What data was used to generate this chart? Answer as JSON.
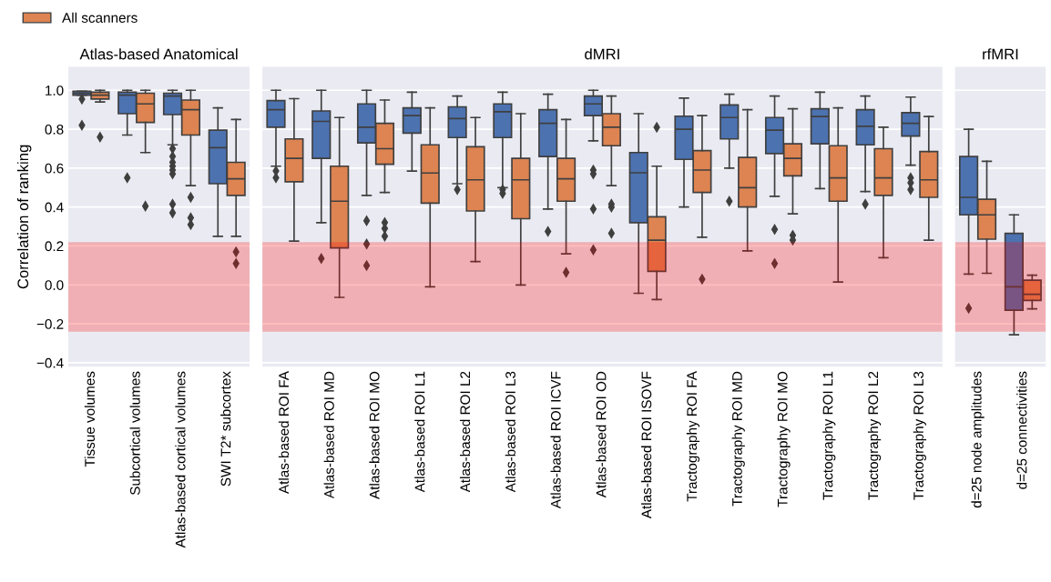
{
  "chart_data": [
    {
      "type": "box",
      "title": "Atlas-based Anatomical",
      "ylabel": "Correlation of ranking",
      "categories": [
        "Tissue volumes",
        "Subcortical volumes",
        "Atlas-based cortical volumes",
        "SWI T2* subcortex"
      ],
      "ylim": [
        -0.42,
        1.12
      ],
      "yticks": [
        {
          "value": -0.4,
          "label": "−0.4"
        },
        {
          "value": -0.2,
          "label": "−0.2"
        },
        {
          "value": 0.0,
          "label": "0.0"
        },
        {
          "value": 0.2,
          "label": "0.2"
        },
        {
          "value": 0.4,
          "label": "0.4"
        },
        {
          "value": 0.6,
          "label": "0.6"
        },
        {
          "value": 0.8,
          "label": "0.8"
        },
        {
          "value": 1.0,
          "label": "1.0"
        }
      ],
      "grid": "y",
      "legend": "top left",
      "bands": [
        {
          "axis": "y",
          "from": -0.24,
          "to": 0.22,
          "color": "#ff0000"
        }
      ],
      "series": [
        {
          "color": "#4c72b0",
          "boxes": [
            {
              "low": 0.975,
              "q1": 0.975,
              "median": 0.985,
              "q3": 0.995,
              "high": 0.995,
              "outliers": [
                0.955,
                0.82
              ]
            },
            {
              "low": 0.77,
              "q1": 0.88,
              "median": 0.975,
              "q3": 0.99,
              "high": 1.0,
              "outliers": [
                0.55
              ]
            },
            {
              "low": 0.72,
              "q1": 0.875,
              "median": 0.97,
              "q3": 0.985,
              "high": 1.0,
              "outliers": [
                0.7,
                0.66,
                0.63,
                0.61,
                0.59,
                0.57,
                0.415,
                0.37
              ]
            },
            {
              "low": 0.25,
              "q1": 0.52,
              "median": 0.705,
              "q3": 0.795,
              "high": 0.91
            }
          ]
        },
        {
          "name": "All scanners",
          "color": "#dd8452",
          "boxes": [
            {
              "low": 0.94,
              "q1": 0.955,
              "median": 0.975,
              "q3": 0.99,
              "high": 1.0,
              "outliers": [
                0.76
              ]
            },
            {
              "low": 0.68,
              "q1": 0.835,
              "median": 0.93,
              "q3": 0.985,
              "high": 1.0,
              "outliers": [
                0.405
              ]
            },
            {
              "low": 0.51,
              "q1": 0.77,
              "median": 0.9,
              "q3": 0.95,
              "high": 1.0,
              "outliers": [
                0.45,
                0.345,
                0.31
              ]
            },
            {
              "low": 0.25,
              "q1": 0.46,
              "median": 0.545,
              "q3": 0.63,
              "high": 0.85,
              "outliers": [
                0.17,
                0.11
              ]
            }
          ]
        }
      ]
    },
    {
      "type": "box",
      "title": "dMRI",
      "categories": [
        "Atlas-based ROI FA",
        "Atlas-based ROI MD",
        "Atlas-based ROI MO",
        "Atlas-based ROI L1",
        "Atlas-based ROI L2",
        "Atlas-based ROI L3",
        "Atlas-based ROI ICVF",
        "Atlas-based ROI OD",
        "Atlas-based ROI ISOVF",
        "Tractography ROI FA",
        "Tractography ROI MD",
        "Tractography ROI MO",
        "Tractography ROI L1",
        "Tractography ROI L2",
        "Tractography ROI L3"
      ],
      "ylim": [
        -0.42,
        1.12
      ],
      "grid": "y",
      "tick_labels": "x",
      "bands": [
        {
          "axis": "y",
          "from": -0.24,
          "to": 0.22,
          "color": "#ff0000"
        }
      ],
      "series": [
        {
          "color": "#4c72b0",
          "boxes": [
            {
              "low": 0.61,
              "q1": 0.81,
              "median": 0.9,
              "q3": 0.947,
              "high": 1.0,
              "outliers": [
                0.585,
                0.55
              ]
            },
            {
              "low": 0.32,
              "q1": 0.65,
              "median": 0.84,
              "q3": 0.894,
              "high": 1.0,
              "outliers": [
                0.136
              ]
            },
            {
              "low": 0.46,
              "q1": 0.73,
              "median": 0.81,
              "q3": 0.93,
              "high": 1.0,
              "outliers": [
                0.33,
                0.21,
                0.1
              ]
            },
            {
              "low": 0.585,
              "q1": 0.78,
              "median": 0.87,
              "q3": 0.91,
              "high": 0.99
            },
            {
              "low": 0.52,
              "q1": 0.757,
              "median": 0.855,
              "q3": 0.915,
              "high": 0.97,
              "outliers": [
                0.49
              ]
            },
            {
              "low": 0.5,
              "q1": 0.757,
              "median": 0.89,
              "q3": 0.93,
              "high": 0.99,
              "outliers": [
                0.49,
                0.47
              ]
            },
            {
              "low": 0.39,
              "q1": 0.66,
              "median": 0.83,
              "q3": 0.9,
              "high": 0.98,
              "outliers": [
                0.275
              ]
            },
            {
              "low": 0.74,
              "q1": 0.87,
              "median": 0.93,
              "q3": 0.97,
              "high": 1.0,
              "outliers": [
                0.59,
                0.57,
                0.39,
                0.18
              ]
            },
            {
              "low": -0.043,
              "q1": 0.32,
              "median": 0.576,
              "q3": 0.68,
              "high": 0.88
            },
            {
              "low": 0.4,
              "q1": 0.645,
              "median": 0.8,
              "q3": 0.867,
              "high": 0.96
            },
            {
              "low": 0.6,
              "q1": 0.75,
              "median": 0.86,
              "q3": 0.925,
              "high": 0.98,
              "outliers": [
                0.43
              ]
            },
            {
              "low": 0.455,
              "q1": 0.675,
              "median": 0.795,
              "q3": 0.86,
              "high": 0.97,
              "outliers": [
                0.285,
                0.11
              ]
            },
            {
              "low": 0.495,
              "q1": 0.725,
              "median": 0.865,
              "q3": 0.905,
              "high": 0.99
            },
            {
              "low": 0.48,
              "q1": 0.72,
              "median": 0.815,
              "q3": 0.9,
              "high": 0.97,
              "outliers": [
                0.415
              ]
            },
            {
              "low": 0.615,
              "q1": 0.765,
              "median": 0.83,
              "q3": 0.885,
              "high": 0.965,
              "outliers": [
                0.55,
                0.525,
                0.49
              ]
            }
          ]
        },
        {
          "name": "All scanners",
          "color": "#dd8452",
          "boxes": [
            {
              "low": 0.225,
              "q1": 0.53,
              "median": 0.65,
              "q3": 0.75,
              "high": 0.957
            },
            {
              "low": -0.064,
              "q1": 0.19,
              "median": 0.43,
              "q3": 0.61,
              "high": 0.86
            },
            {
              "low": 0.475,
              "q1": 0.62,
              "median": 0.7,
              "q3": 0.83,
              "high": 0.95,
              "outliers": [
                0.32,
                0.29,
                0.25
              ]
            },
            {
              "low": -0.01,
              "q1": 0.42,
              "median": 0.575,
              "q3": 0.72,
              "high": 0.91
            },
            {
              "low": 0.12,
              "q1": 0.38,
              "median": 0.54,
              "q3": 0.71,
              "high": 0.86
            },
            {
              "low": 0.0,
              "q1": 0.34,
              "median": 0.54,
              "q3": 0.65,
              "high": 0.88
            },
            {
              "low": 0.16,
              "q1": 0.43,
              "median": 0.545,
              "q3": 0.65,
              "high": 0.85,
              "outliers": [
                0.064
              ]
            },
            {
              "low": 0.51,
              "q1": 0.715,
              "median": 0.81,
              "q3": 0.88,
              "high": 0.97,
              "outliers": [
                0.415,
                0.4,
                0.265
              ]
            },
            {
              "low": -0.075,
              "q1": 0.07,
              "median": 0.23,
              "q3": 0.35,
              "high": 0.61,
              "outliers": [
                0.81
              ]
            },
            {
              "low": 0.245,
              "q1": 0.475,
              "median": 0.59,
              "q3": 0.69,
              "high": 0.87,
              "outliers": [
                0.03
              ]
            },
            {
              "low": 0.175,
              "q1": 0.4,
              "median": 0.5,
              "q3": 0.655,
              "high": 0.9
            },
            {
              "low": 0.365,
              "q1": 0.56,
              "median": 0.65,
              "q3": 0.725,
              "high": 0.905,
              "outliers": [
                0.255,
                0.23
              ]
            },
            {
              "low": 0.015,
              "q1": 0.43,
              "median": 0.55,
              "q3": 0.715,
              "high": 0.91
            },
            {
              "low": 0.14,
              "q1": 0.46,
              "median": 0.55,
              "q3": 0.7,
              "high": 0.81
            },
            {
              "low": 0.23,
              "q1": 0.45,
              "median": 0.54,
              "q3": 0.685,
              "high": 0.865
            }
          ]
        }
      ]
    },
    {
      "type": "box",
      "title": "rfMRI",
      "categories": [
        "d=25 node amplitudes",
        "d=25 connectivities"
      ],
      "ylim": [
        -0.42,
        1.12
      ],
      "grid": "y",
      "tick_labels": "x",
      "bands": [
        {
          "axis": "y",
          "from": -0.24,
          "to": 0.22,
          "color": "#ff0000"
        }
      ],
      "series": [
        {
          "color": "#4c72b0",
          "boxes": [
            {
              "low": 0.056,
              "q1": 0.36,
              "median": 0.45,
              "q3": 0.66,
              "high": 0.8,
              "outliers": [
                -0.12
              ]
            },
            {
              "low": -0.256,
              "q1": -0.13,
              "median": -0.01,
              "q3": 0.265,
              "high": 0.36
            }
          ]
        },
        {
          "name": "All scanners",
          "color": "#dd8452",
          "boxes": [
            {
              "low": 0.06,
              "q1": 0.235,
              "median": 0.36,
              "q3": 0.44,
              "high": 0.635
            },
            {
              "low": -0.123,
              "q1": -0.08,
              "median": -0.048,
              "q3": 0.024,
              "high": 0.05
            }
          ]
        }
      ]
    }
  ]
}
